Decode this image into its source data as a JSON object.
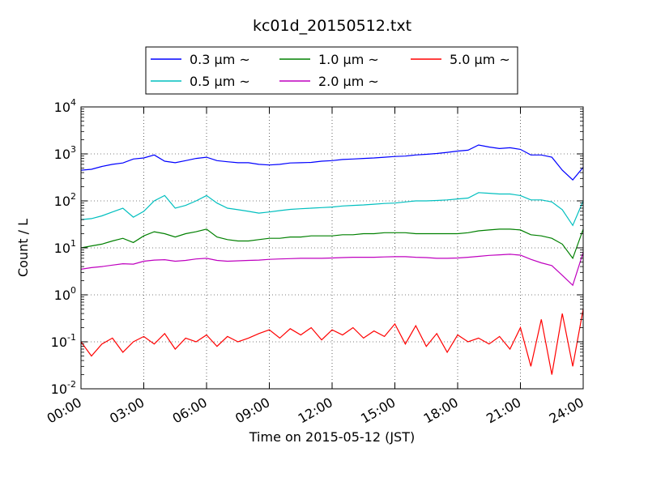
{
  "chart_data": {
    "type": "line",
    "title": "kc01d_20150512.txt",
    "xlabel": "Time on 2015-05-12 (JST)",
    "ylabel": "Count / L",
    "y_scale": "log",
    "ylim": [
      0.01,
      10000
    ],
    "xlim": [
      "00:00",
      "24:00"
    ],
    "grid": true,
    "grid_style": "dotted",
    "legend_position": "top, above plot",
    "x_ticks": [
      "00:00",
      "03:00",
      "06:00",
      "09:00",
      "12:00",
      "15:00",
      "18:00",
      "21:00",
      "24:00"
    ],
    "y_ticks": [
      {
        "base": "10",
        "exp": "-2",
        "value": 0.01
      },
      {
        "base": "10",
        "exp": "-1",
        "value": 0.1
      },
      {
        "base": "10",
        "exp": "0",
        "value": 1
      },
      {
        "base": "10",
        "exp": "1",
        "value": 10
      },
      {
        "base": "10",
        "exp": "2",
        "value": 100
      },
      {
        "base": "10",
        "exp": "3",
        "value": 1000
      },
      {
        "base": "10",
        "exp": "4",
        "value": 10000
      }
    ],
    "x_hours": [
      0,
      0.5,
      1,
      1.5,
      2,
      2.5,
      3,
      3.5,
      4,
      4.5,
      5,
      5.5,
      6,
      6.5,
      7,
      7.5,
      8,
      8.5,
      9,
      9.5,
      10,
      10.5,
      11,
      11.5,
      12,
      12.5,
      13,
      13.5,
      14,
      14.5,
      15,
      15.5,
      16,
      16.5,
      17,
      17.5,
      18,
      18.5,
      19,
      19.5,
      20,
      20.5,
      21,
      21.5,
      22,
      22.5,
      23,
      23.5,
      24
    ],
    "series": [
      {
        "name": "0.3 µm ~",
        "color": "#0000ff",
        "values": [
          450,
          470,
          540,
          600,
          640,
          780,
          820,
          950,
          700,
          650,
          720,
          800,
          850,
          720,
          680,
          650,
          650,
          600,
          580,
          600,
          640,
          650,
          660,
          700,
          720,
          760,
          780,
          800,
          820,
          850,
          880,
          900,
          950,
          980,
          1020,
          1080,
          1150,
          1200,
          1550,
          1400,
          1300,
          1350,
          1250,
          950,
          950,
          850,
          450,
          280,
          520
        ]
      },
      {
        "name": "0.5 µm ~",
        "color": "#00bfbf",
        "values": [
          40,
          42,
          48,
          58,
          70,
          45,
          60,
          100,
          130,
          70,
          80,
          100,
          130,
          90,
          70,
          65,
          60,
          55,
          58,
          62,
          66,
          68,
          70,
          72,
          74,
          78,
          80,
          82,
          85,
          88,
          90,
          95,
          100,
          100,
          102,
          105,
          110,
          115,
          150,
          145,
          140,
          140,
          130,
          105,
          105,
          95,
          65,
          30,
          100
        ]
      },
      {
        "name": "1.0 µm ~",
        "color": "#008000",
        "values": [
          10,
          11,
          12,
          14,
          16,
          13,
          18,
          22,
          20,
          17,
          20,
          22,
          25,
          17,
          15,
          14,
          14,
          15,
          16,
          16,
          17,
          17,
          18,
          18,
          18,
          19,
          19,
          20,
          20,
          21,
          21,
          21,
          20,
          20,
          20,
          20,
          20,
          21,
          23,
          24,
          25,
          25,
          24,
          19,
          18,
          16,
          12,
          6,
          25
        ]
      },
      {
        "name": "2.0 µm ~",
        "color": "#bf00bf",
        "values": [
          3.5,
          3.8,
          4.0,
          4.3,
          4.6,
          4.5,
          5.2,
          5.5,
          5.6,
          5.2,
          5.4,
          5.8,
          6.0,
          5.4,
          5.2,
          5.3,
          5.4,
          5.5,
          5.7,
          5.8,
          5.9,
          6.0,
          6.0,
          6.0,
          6.1,
          6.2,
          6.3,
          6.3,
          6.3,
          6.4,
          6.5,
          6.5,
          6.3,
          6.2,
          6.0,
          6.0,
          6.1,
          6.3,
          6.6,
          6.9,
          7.1,
          7.3,
          7.0,
          5.7,
          4.8,
          4.2,
          2.6,
          1.6,
          8
        ]
      },
      {
        "name": "5.0 µm ~",
        "color": "#ff0000",
        "values": [
          0.1,
          0.05,
          0.09,
          0.12,
          0.06,
          0.1,
          0.13,
          0.09,
          0.15,
          0.07,
          0.12,
          0.1,
          0.14,
          0.08,
          0.13,
          0.1,
          0.12,
          0.15,
          0.18,
          0.12,
          0.19,
          0.14,
          0.2,
          0.11,
          0.18,
          0.14,
          0.2,
          0.12,
          0.17,
          0.13,
          0.24,
          0.09,
          0.22,
          0.08,
          0.15,
          0.06,
          0.14,
          0.1,
          0.12,
          0.09,
          0.13,
          0.07,
          0.2,
          0.03,
          0.3,
          0.02,
          0.4,
          0.03,
          0.5
        ]
      }
    ]
  }
}
